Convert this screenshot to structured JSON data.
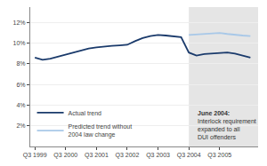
{
  "chart_data": {
    "type": "line",
    "x": [
      0,
      0.5,
      1,
      1.5,
      2,
      2.5,
      3,
      3.5,
      4,
      4.5,
      5,
      5.5,
      6,
      6.5,
      7,
      7.5,
      8,
      8.5,
      9,
      9.5,
      10,
      10.5,
      11,
      11.5,
      12,
      12.5,
      13,
      13.5,
      14
    ],
    "series": [
      {
        "name": "Actual trend",
        "color": "#1a3a6b",
        "values": [
          8.6,
          8.4,
          8.5,
          8.7,
          8.9,
          9.1,
          9.3,
          9.5,
          9.6,
          9.7,
          9.75,
          9.8,
          9.85,
          10.2,
          10.5,
          10.7,
          10.8,
          10.75,
          10.7,
          10.6,
          9.1,
          8.8,
          8.95,
          9.0,
          9.05,
          9.1,
          9.0,
          8.8,
          8.6
        ]
      },
      {
        "name": "Predicted trend without\n2004 law change",
        "color": "#a8c8e8",
        "values": [
          null,
          null,
          null,
          null,
          null,
          null,
          null,
          null,
          null,
          null,
          null,
          null,
          null,
          null,
          null,
          null,
          null,
          null,
          null,
          null,
          10.8,
          10.85,
          10.9,
          10.95,
          11.0,
          10.9,
          10.8,
          10.75,
          10.7
        ]
      }
    ],
    "xlim": [
      -0.3,
      14.5
    ],
    "ylim": [
      0,
      13.5
    ],
    "xticks": [
      {
        "value": 0,
        "label": "Q3 1999"
      },
      {
        "value": 2,
        "label": "Q3 2000"
      },
      {
        "value": 4,
        "label": "Q3 2001"
      },
      {
        "value": 6,
        "label": "Q3 2002"
      },
      {
        "value": 8,
        "label": "Q3 2003"
      },
      {
        "value": 10,
        "label": "Q3 2004"
      },
      {
        "value": 12,
        "label": "Q3 2005"
      }
    ],
    "yticks": [
      {
        "value": 2,
        "label": "2%"
      },
      {
        "value": 4,
        "label": "4%"
      },
      {
        "value": 6,
        "label": "6%"
      },
      {
        "value": 8,
        "label": "8%"
      },
      {
        "value": 10,
        "label": "10%"
      },
      {
        "value": 12,
        "label": "12%"
      }
    ],
    "grid": "y",
    "legend": "lower left",
    "shaded_region": {
      "from": 10,
      "color": "#e5e5e5"
    },
    "annotations": [
      "June 2004:",
      "Interlock requirement\nexpanded to all\nDUI offenders"
    ]
  }
}
